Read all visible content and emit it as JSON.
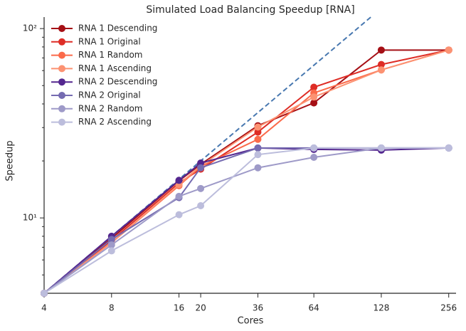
{
  "chart_data": {
    "type": "line",
    "title": "Simulated Load Balancing Speedup [RNA]",
    "x_label": "Cores",
    "y_label": "Speedup",
    "x": [
      4,
      8,
      16,
      20,
      36,
      64,
      128,
      256
    ],
    "xscale": "log",
    "yscale": "log",
    "xlim": [
      4,
      276
    ],
    "ylim": [
      4,
      115
    ],
    "xticks": [
      4,
      8,
      16,
      20,
      36,
      64,
      128,
      256
    ],
    "yticks": [
      {
        "value": 10,
        "label": "10¹"
      },
      {
        "value": 100,
        "label": "10²"
      }
    ],
    "yminor": [
      5,
      6,
      7,
      8,
      9,
      20,
      30,
      40,
      50,
      60,
      70,
      80,
      90
    ],
    "legend": "upper left",
    "ideal_line": {
      "color": "#4878b0",
      "style": "dashed"
    },
    "series": [
      {
        "name": "RNA 1 Descending",
        "color": "#a50f15",
        "values": [
          4,
          7.8,
          15.7,
          19.2,
          30.7,
          40.5,
          77,
          77
        ]
      },
      {
        "name": "RNA 1 Original",
        "color": "#de2d26",
        "values": [
          4,
          7.6,
          15.3,
          18.1,
          28.4,
          49,
          64.6,
          77
        ]
      },
      {
        "name": "RNA 1 Random",
        "color": "#fb6a4a",
        "values": [
          4,
          7.4,
          14.8,
          18.7,
          26,
          45.7,
          60.5,
          77
        ]
      },
      {
        "name": "RNA 1 Ascending",
        "color": "#fc9272",
        "values": [
          4,
          7.4,
          15,
          18.9,
          30.2,
          43.5,
          60.5,
          77
        ]
      },
      {
        "name": "RNA 2 Descending",
        "color": "#54278f",
        "values": [
          4,
          8,
          15.8,
          19.5,
          23.4,
          23,
          22.8,
          23.4
        ]
      },
      {
        "name": "RNA 2 Original",
        "color": "#756bb1",
        "values": [
          4,
          7.7,
          12.8,
          18.4,
          23.4,
          23.4,
          23.4,
          23.4
        ]
      },
      {
        "name": "RNA 2 Random",
        "color": "#9e9ac8",
        "values": [
          4,
          7.2,
          13,
          14.3,
          18.4,
          20.9,
          23.4,
          23.4
        ]
      },
      {
        "name": "RNA 2 Ascending",
        "color": "#bcbddc",
        "values": [
          4,
          6.7,
          10.4,
          11.6,
          21.6,
          23.4,
          23.4,
          23.4
        ]
      }
    ]
  }
}
